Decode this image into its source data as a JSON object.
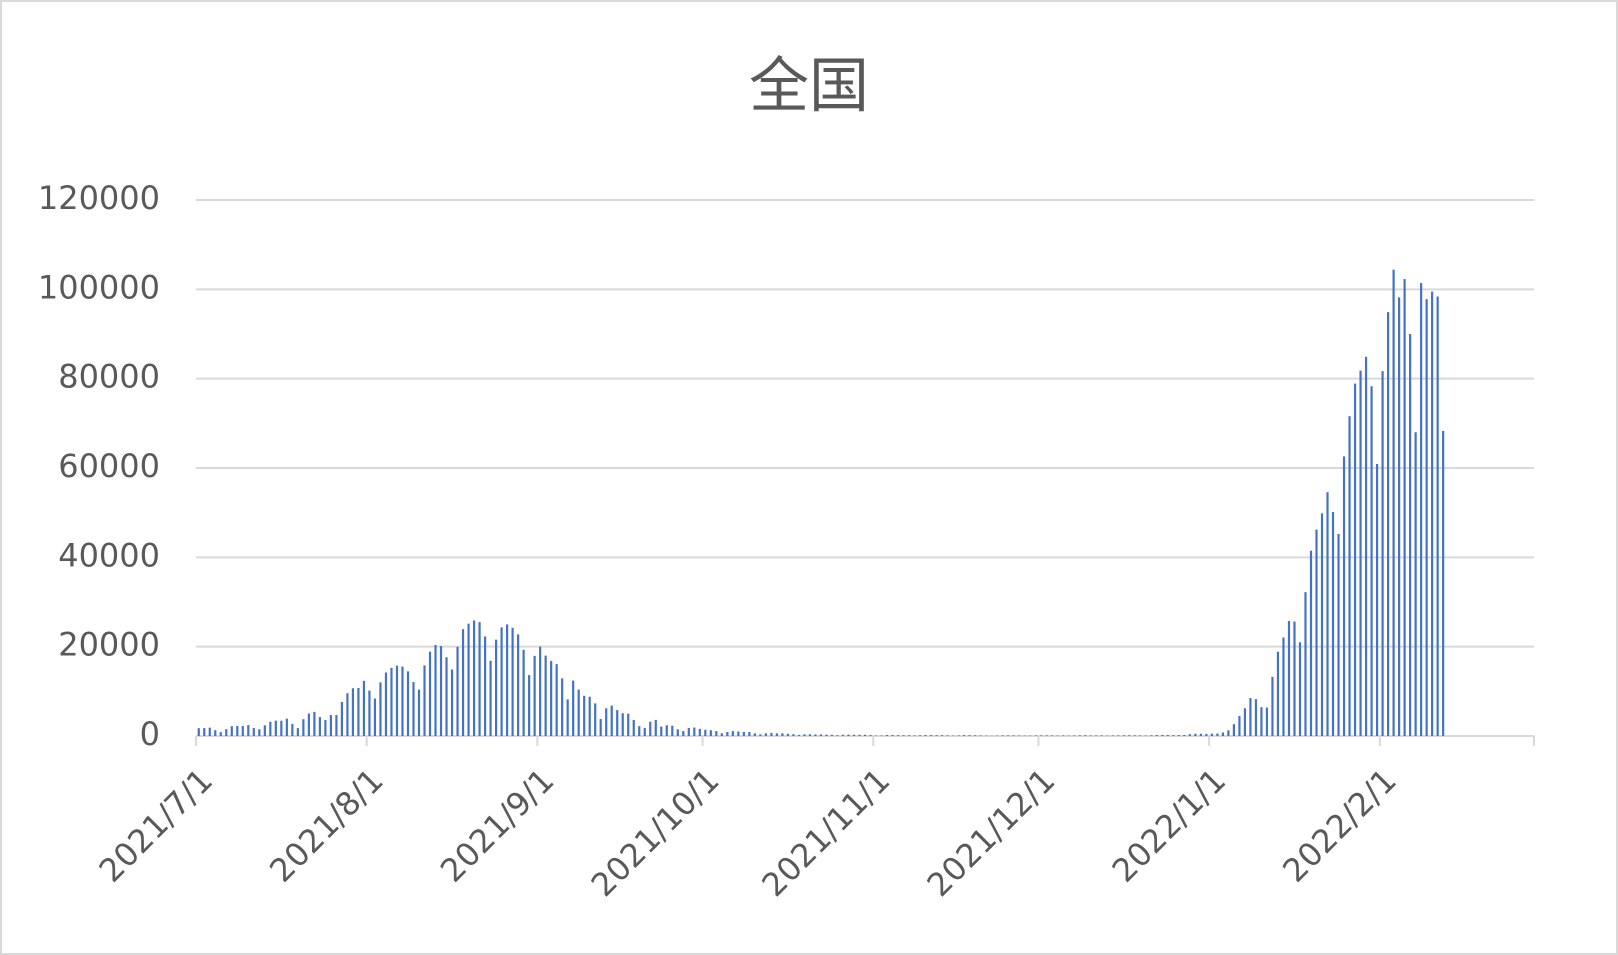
{
  "chart_data": {
    "type": "bar",
    "title": "全国",
    "color": "#4472c4",
    "ylim": [
      0,
      120000
    ],
    "yticks": [
      0,
      20000,
      40000,
      60000,
      80000,
      100000,
      120000
    ],
    "grid": true,
    "categories": [
      "2021/7/1",
      null,
      null,
      null,
      null,
      null,
      null,
      null,
      null,
      null,
      null,
      null,
      null,
      null,
      null,
      null,
      null,
      null,
      null,
      null,
      null,
      null,
      null,
      null,
      null,
      null,
      null,
      null,
      null,
      null,
      null,
      "2021/8/1",
      null,
      null,
      null,
      null,
      null,
      null,
      null,
      null,
      null,
      null,
      null,
      null,
      null,
      null,
      null,
      null,
      null,
      null,
      null,
      null,
      null,
      null,
      null,
      null,
      null,
      null,
      null,
      null,
      null,
      null,
      "2021/9/1",
      null,
      null,
      null,
      null,
      null,
      null,
      null,
      null,
      null,
      null,
      null,
      null,
      null,
      null,
      null,
      null,
      null,
      null,
      null,
      null,
      null,
      null,
      null,
      null,
      null,
      null,
      null,
      null,
      null,
      "2021/10/1",
      null,
      null,
      null,
      null,
      null,
      null,
      null,
      null,
      null,
      null,
      null,
      null,
      null,
      null,
      null,
      null,
      null,
      null,
      null,
      null,
      null,
      null,
      null,
      null,
      null,
      null,
      null,
      null,
      null,
      null,
      "2021/11/1",
      null,
      null,
      null,
      null,
      null,
      null,
      null,
      null,
      null,
      null,
      null,
      null,
      null,
      null,
      null,
      null,
      null,
      null,
      null,
      null,
      null,
      null,
      null,
      null,
      null,
      null,
      null,
      null,
      null,
      "2021/12/1",
      null,
      null,
      null,
      null,
      null,
      null,
      null,
      null,
      null,
      null,
      null,
      null,
      null,
      null,
      null,
      null,
      null,
      null,
      null,
      null,
      null,
      null,
      null,
      null,
      null,
      null,
      null,
      null,
      null,
      null,
      "2022/1/1",
      null,
      null,
      null,
      null,
      null,
      null,
      null,
      null,
      null,
      null,
      null,
      null,
      null,
      null,
      null,
      null,
      null,
      null,
      null,
      null,
      null,
      null,
      null,
      null,
      null,
      null,
      null,
      null,
      null,
      null,
      "2022/2/1",
      null,
      null,
      null,
      null,
      null,
      null,
      null,
      null,
      null,
      null,
      null,
      null,
      null,
      null,
      null,
      null,
      null,
      null,
      null,
      null,
      null,
      null,
      null,
      null,
      null,
      null,
      null
    ],
    "values": [
      1757,
      1776,
      1866,
      1301,
      862,
      1531,
      2191,
      2248,
      2230,
      2447,
      1784,
      1501,
      2389,
      3193,
      3425,
      3419,
      3885,
      2701,
      1763,
      3758,
      5030,
      5393,
      4225,
      3574,
      4692,
      4687,
      7629,
      9576,
      10687,
      10744,
      12340,
      10167,
      8392,
      12016,
      14207,
      15263,
      15753,
      15545,
      14472,
      12076,
      10391,
      15812,
      18889,
      20365,
      20151,
      17628,
      14893,
      19966,
      23914,
      25156,
      25876,
      25492,
      22285,
      16856,
      21570,
      24316,
      24980,
      24223,
      22748,
      19297,
      13636,
      17939,
      20000,
      18000,
      16800,
      16100,
      12900,
      8200,
      12400,
      10400,
      9000,
      8800,
      7300,
      3800,
      6200,
      6800,
      5800,
      5100,
      5000,
      3600,
      2200,
      1800,
      3200,
      3600,
      2100,
      2400,
      2300,
      1500,
      1100,
      1800,
      1900,
      1600,
      1400,
      1300,
      1100,
      600,
      900,
      1100,
      1000,
      900,
      900,
      600,
      370,
      600,
      700,
      600,
      600,
      500,
      400,
      250,
      370,
      390,
      350,
      340,
      300,
      270,
      150,
      290,
      300,
      280,
      270,
      280,
      210,
      87,
      100,
      230,
      210,
      190,
      160,
      160,
      100,
      150,
      210,
      200,
      190,
      170,
      130,
      80,
      130,
      200,
      180,
      150,
      120,
      80,
      50,
      90,
      130,
      120,
      130,
      110,
      80,
      90,
      120,
      130,
      140,
      120,
      90,
      130,
      90,
      110,
      140,
      170,
      120,
      110,
      130,
      90,
      110,
      130,
      160,
      170,
      140,
      120,
      100,
      150,
      220,
      230,
      230,
      190,
      210,
      240,
      400,
      500,
      500,
      480,
      530,
      560,
      780,
      1260,
      2640,
      4470,
      6210,
      8480,
      8250,
      6440,
      6380,
      13240,
      18860,
      22050,
      25740,
      25630,
      20980,
      32200,
      41480,
      46200,
      49850,
      54580,
      50140,
      45230,
      62600,
      71600,
      78900,
      81800,
      84900,
      78300,
      60900,
      81700,
      94900,
      104400,
      98200,
      102300,
      90000,
      68000,
      101400,
      97800,
      99500,
      98400,
      68300,
      null,
      null,
      null,
      null,
      null,
      null,
      null,
      null,
      null,
      null,
      null,
      null,
      null,
      null,
      null,
      null
    ]
  }
}
